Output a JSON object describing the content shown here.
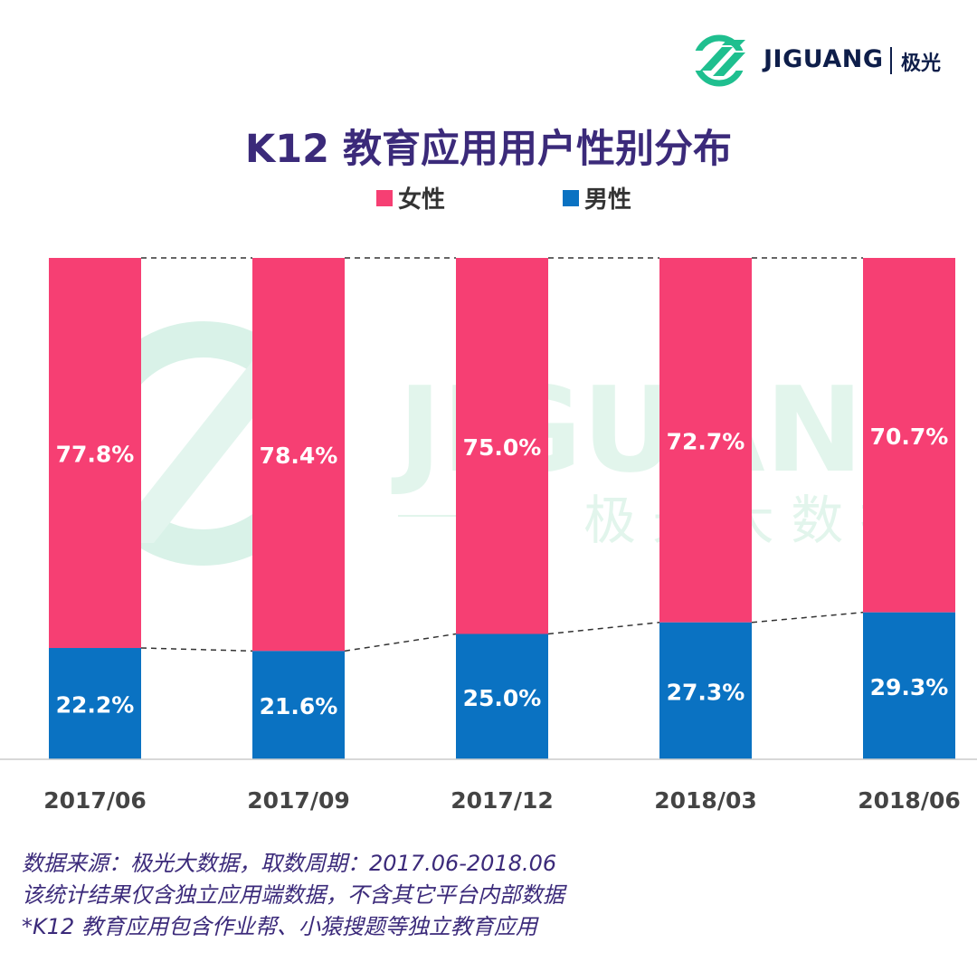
{
  "logo": {
    "text": "JIGUANG",
    "cn": "极光"
  },
  "watermark": {
    "text": "JIGUANG",
    "cn": "极 光 大 数 据"
  },
  "chart_data": {
    "type": "bar",
    "stacked": true,
    "title": "K12 教育应用用户性别分布",
    "categories": [
      "2017/06",
      "2017/09",
      "2017/12",
      "2018/03",
      "2018/06"
    ],
    "series": [
      {
        "name": "女性",
        "color": "#f63f73",
        "values": [
          77.8,
          78.4,
          75.0,
          72.7,
          70.7
        ],
        "labels": [
          "77.8%",
          "78.4%",
          "75.0%",
          "72.7%",
          "70.7%"
        ]
      },
      {
        "name": "男性",
        "color": "#0a72c2",
        "values": [
          22.2,
          21.6,
          25.0,
          27.3,
          29.3
        ],
        "labels": [
          "22.2%",
          "21.6%",
          "25.0%",
          "27.3%",
          "29.3%"
        ]
      }
    ],
    "ylim": [
      0,
      100
    ],
    "xlabel": "",
    "ylabel": "",
    "grid": false,
    "legend": "top-center"
  },
  "footnotes": [
    "数据来源：极光大数据，取数周期：2017.06-2018.06",
    "该统计结果仅含独立应用端数据，不含其它平台内部数据",
    "*K12 教育应用包含作业帮、小猿搜题等独立教育应用"
  ]
}
